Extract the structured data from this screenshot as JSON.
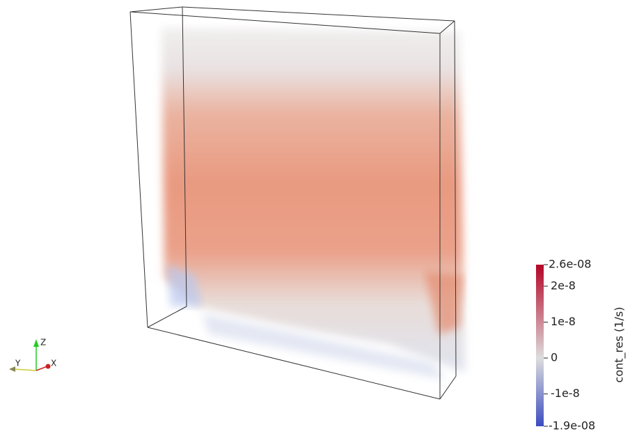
{
  "colorbar": {
    "title": "cont_res (1/s)",
    "range": [
      {
        "value": -1.9e-08,
        "label": "-1.9e-08"
      },
      {
        "value": 2.6e-08,
        "label": "2.6e-08"
      }
    ],
    "ticks": [
      2e-08,
      1e-08,
      0,
      -1e-08
    ],
    "colors": {
      "low": "#3b4cc0",
      "mid": "#dddddd",
      "high": "#b40426"
    }
  },
  "axes_triad": {
    "z": "Z",
    "y": "Y",
    "x": "X"
  }
}
